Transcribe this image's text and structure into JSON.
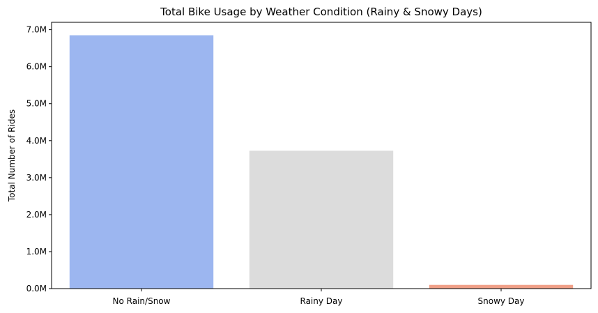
{
  "chart_data": {
    "type": "bar",
    "title": "Total Bike Usage by Weather Condition (Rainy & Snowy Days)",
    "xlabel": "",
    "ylabel": "Total Number of Rides",
    "categories": [
      "No Rain/Snow",
      "Rainy Day",
      "Snowy Day"
    ],
    "values": [
      6850000,
      3730000,
      100000
    ],
    "colors": [
      "#9cb6f0",
      "#dcdcdc",
      "#f0a088"
    ],
    "ylim": [
      0,
      7200000
    ],
    "yticks": [
      0,
      1000000,
      2000000,
      3000000,
      4000000,
      5000000,
      6000000,
      7000000
    ],
    "ytick_labels": [
      "0.0M",
      "1.0M",
      "2.0M",
      "3.0M",
      "4.0M",
      "5.0M",
      "6.0M",
      "7.0M"
    ],
    "grid": false,
    "legend": "none"
  }
}
